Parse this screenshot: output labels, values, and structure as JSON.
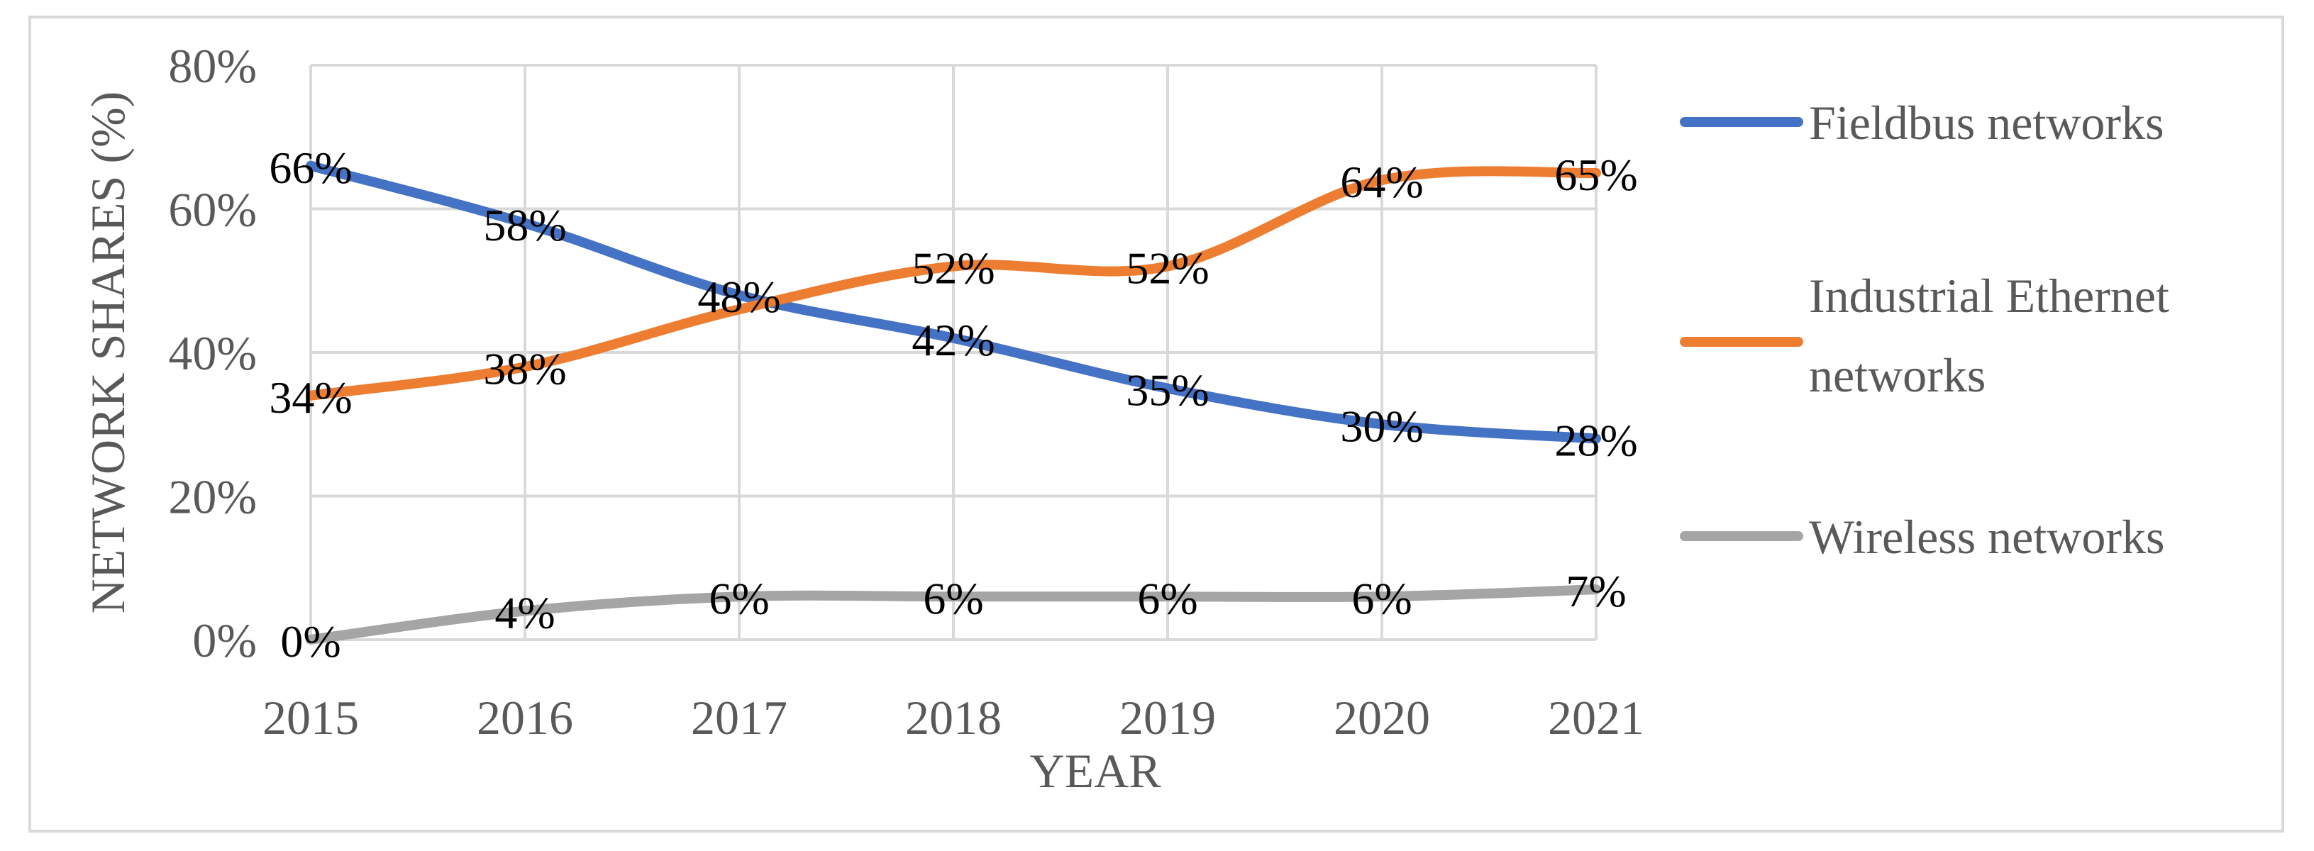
{
  "chart_data": {
    "type": "line",
    "categories": [
      "2015",
      "2016",
      "2017",
      "2018",
      "2019",
      "2020",
      "2021"
    ],
    "series": [
      {
        "name": "Fieldbus networks",
        "color": "#4472c4",
        "values": [
          66,
          58,
          48,
          42,
          35,
          30,
          28
        ],
        "labels": [
          "66%",
          "58%",
          "48%",
          "42%",
          "35%",
          "30%",
          "28%"
        ]
      },
      {
        "name": "Industrial Ethernet networks",
        "legend_lines": [
          "Industrial Ethernet",
          "networks"
        ],
        "color": "#ed7d31",
        "values": [
          34,
          38,
          46,
          52,
          52,
          64,
          65
        ],
        "labels": [
          "34%",
          "38%",
          "",
          "52%",
          "52%",
          "64%",
          "65%"
        ]
      },
      {
        "name": "Wireless networks",
        "color": "#a5a5a5",
        "values": [
          0,
          4,
          6,
          6,
          6,
          6,
          7
        ],
        "labels": [
          "0%",
          "4%",
          "6%",
          "6%",
          "6%",
          "6%",
          "7%"
        ]
      }
    ],
    "yticks": [
      0,
      20,
      40,
      60,
      80
    ],
    "ytick_labels": [
      "0%",
      "20%",
      "40%",
      "60%",
      "80%"
    ],
    "ylim": [
      0,
      80
    ],
    "xlabel": "YEAR",
    "ylabel": "NETWORK SHARES (%)",
    "grid": true,
    "legend": "right"
  }
}
